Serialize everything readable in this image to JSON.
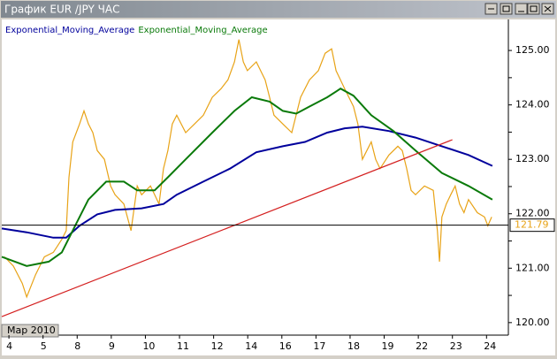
{
  "chart_data": {
    "type": "line",
    "title": "График EUR /JPY ЧАС",
    "x_period_label": "Мар 2010",
    "xlim": [
      -0.21,
      14.64
    ],
    "xticks": [
      {
        "value": 0,
        "label": "4"
      },
      {
        "value": 1,
        "label": "5"
      },
      {
        "value": 2,
        "label": "8"
      },
      {
        "value": 3,
        "label": "9"
      },
      {
        "value": 4,
        "label": "10"
      },
      {
        "value": 5,
        "label": "11"
      },
      {
        "value": 6,
        "label": "12"
      },
      {
        "value": 7,
        "label": "14"
      },
      {
        "value": 8,
        "label": "16"
      },
      {
        "value": 9,
        "label": "17"
      },
      {
        "value": 10,
        "label": "18"
      },
      {
        "value": 11,
        "label": "19"
      },
      {
        "value": 12,
        "label": "22"
      },
      {
        "value": 13,
        "label": "23"
      },
      {
        "value": 14,
        "label": "24"
      }
    ],
    "ylim": [
      119.77,
      125.57
    ],
    "yticks": [
      {
        "value": 120,
        "label": "120.00"
      },
      120.5,
      {
        "value": 121,
        "label": "121.00"
      },
      121.5,
      {
        "value": 122,
        "label": "122.00"
      },
      122.5,
      {
        "value": 123,
        "label": "123.00"
      },
      123.5,
      {
        "value": 124,
        "label": "124.00"
      },
      124.5,
      {
        "value": 125,
        "label": "125.00"
      }
    ],
    "grid": false,
    "hline": {
      "value": 121.79,
      "color": "#000000"
    },
    "series": [
      {
        "color": "#e8a317",
        "x": [
          -0.13,
          0.13,
          0.39,
          0.52,
          0.78,
          1.04,
          1.3,
          1.55,
          1.68,
          1.76,
          1.87,
          2.07,
          2.2,
          2.33,
          2.46,
          2.59,
          2.8,
          2.98,
          3.11,
          3.37,
          3.58,
          3.76,
          3.89,
          4.15,
          4.4,
          4.53,
          4.66,
          4.79,
          4.92,
          5.18,
          5.44,
          5.7,
          5.96,
          6.22,
          6.42,
          6.61,
          6.74,
          6.87,
          6.99,
          7.25,
          7.51,
          7.64,
          7.77,
          8.03,
          8.29,
          8.55,
          8.81,
          9.07,
          9.27,
          9.46,
          9.59,
          9.84,
          10.1,
          10.23,
          10.36,
          10.49,
          10.62,
          10.75,
          10.88,
          11.14,
          11.4,
          11.53,
          11.66,
          11.79,
          11.92,
          12.18,
          12.44,
          12.56,
          12.62,
          12.69,
          12.82,
          12.95,
          13.08,
          13.21,
          13.34,
          13.47,
          13.73,
          13.94,
          14.04,
          14.15
        ],
        "values": [
          121.21,
          121.04,
          120.72,
          120.47,
          120.88,
          121.21,
          121.29,
          121.53,
          121.69,
          122.67,
          123.32,
          123.65,
          123.89,
          123.65,
          123.49,
          123.16,
          123.0,
          122.51,
          122.35,
          122.18,
          121.69,
          122.51,
          122.35,
          122.51,
          122.18,
          122.83,
          123.16,
          123.65,
          123.81,
          123.49,
          123.65,
          123.81,
          124.14,
          124.3,
          124.46,
          124.79,
          125.2,
          124.79,
          124.63,
          124.79,
          124.46,
          124.14,
          123.81,
          123.65,
          123.49,
          124.14,
          124.46,
          124.63,
          124.95,
          125.03,
          124.63,
          124.3,
          123.97,
          123.65,
          123.0,
          123.16,
          123.32,
          123.0,
          122.83,
          123.08,
          123.24,
          123.16,
          122.83,
          122.43,
          122.35,
          122.51,
          122.43,
          121.69,
          121.12,
          121.94,
          122.18,
          122.35,
          122.51,
          122.18,
          122.02,
          122.26,
          122.02,
          121.94,
          121.78,
          121.94
        ]
      },
      {
        "name": "Exponential_Moving_Average",
        "color": "#00009c",
        "x": [
          -0.21,
          0.52,
          1.3,
          1.68,
          2.07,
          2.59,
          3.11,
          3.89,
          4.53,
          4.92,
          5.7,
          6.48,
          7.25,
          8.03,
          8.68,
          9.33,
          9.84,
          10.36,
          11.14,
          11.92,
          12.69,
          13.47,
          14.17
        ],
        "values": [
          121.73,
          121.66,
          121.56,
          121.56,
          121.78,
          121.99,
          122.07,
          122.1,
          122.18,
          122.35,
          122.59,
          122.83,
          123.13,
          123.24,
          123.32,
          123.49,
          123.57,
          123.6,
          123.52,
          123.4,
          123.24,
          123.08,
          122.88
        ]
      },
      {
        "name": "Exponential_Moving_Average",
        "color": "#0a7a0a",
        "x": [
          -0.21,
          0.52,
          1.17,
          1.55,
          1.94,
          2.33,
          2.85,
          3.37,
          3.76,
          4.27,
          4.66,
          5.18,
          5.96,
          6.61,
          7.12,
          7.64,
          8.03,
          8.42,
          8.81,
          9.33,
          9.72,
          10.1,
          10.62,
          11.27,
          11.92,
          12.69,
          13.47,
          14.17
        ],
        "values": [
          121.21,
          121.04,
          121.12,
          121.29,
          121.78,
          122.26,
          122.59,
          122.59,
          122.43,
          122.43,
          122.67,
          123.0,
          123.49,
          123.89,
          124.14,
          124.06,
          123.89,
          123.84,
          123.97,
          124.14,
          124.3,
          124.17,
          123.81,
          123.52,
          123.16,
          122.75,
          122.51,
          122.26
        ]
      },
      {
        "color": "#d42020",
        "x": [
          -0.21,
          13.0
        ],
        "values": [
          120.11,
          123.36
        ]
      }
    ]
  }
}
